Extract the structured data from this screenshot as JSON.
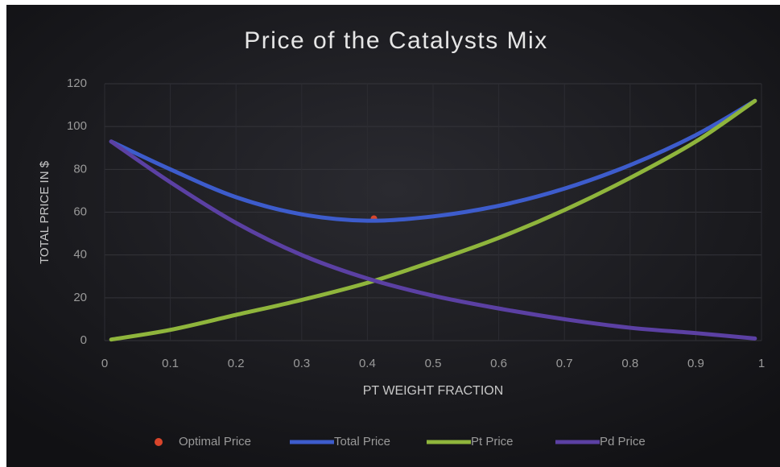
{
  "chart_data": {
    "type": "line",
    "title": "Price of the Catalysts Mix",
    "x_label": "PT WEIGHT FRACTION",
    "y_label": "TOTAL PRICE IN $",
    "x": [
      0.01,
      0.1,
      0.2,
      0.3,
      0.4,
      0.5,
      0.6,
      0.7,
      0.8,
      0.9,
      0.99
    ],
    "series": [
      {
        "name": "Optimal Price",
        "type": "scatter",
        "color": "#d9452b",
        "x": [
          0.41
        ],
        "values": [
          57
        ]
      },
      {
        "name": "Total Price",
        "color": "#3d5ccc",
        "values": [
          93,
          80,
          67,
          59,
          56,
          58,
          63,
          71,
          82,
          96,
          112
        ]
      },
      {
        "name": "Pt Price",
        "color": "#8fb53c",
        "values": [
          0.5,
          5,
          12,
          19,
          27,
          37,
          48,
          61,
          76,
          93,
          112
        ]
      },
      {
        "name": "Pd Price",
        "color": "#5b40a3",
        "values": [
          93,
          74,
          55,
          40,
          29,
          21,
          15,
          10,
          6,
          3.5,
          1
        ]
      }
    ],
    "xlim": [
      0,
      1
    ],
    "xticks": [
      0,
      0.1,
      0.2,
      0.3,
      0.4,
      0.5,
      0.6,
      0.7,
      0.8,
      0.9,
      1
    ],
    "ylim": [
      0,
      120
    ],
    "yticks": [
      0,
      20,
      40,
      60,
      80,
      100,
      120
    ],
    "grid": true,
    "legend": "bottom"
  }
}
